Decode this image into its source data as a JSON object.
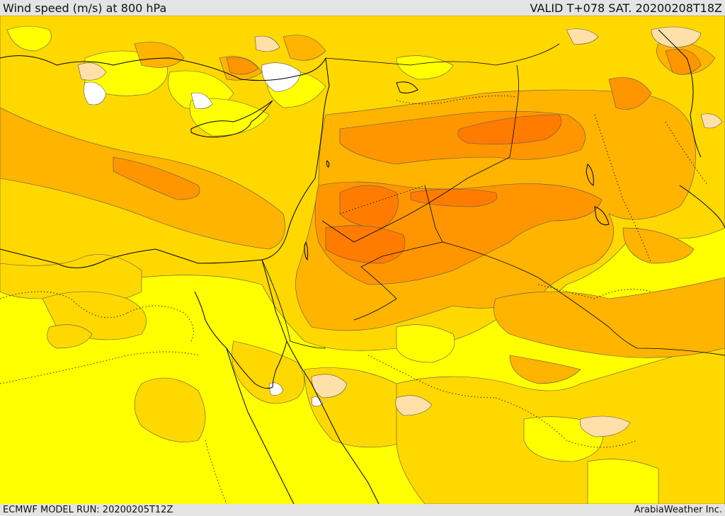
{
  "header": {
    "title": "Wind speed (m/s) at 800 hPa",
    "valid_time": "VALID T+078 SAT. 20200208T18Z"
  },
  "footer": {
    "model_run": "ECMWF MODEL RUN: 20200205T12Z",
    "credit": "ArabiaWeather Inc."
  },
  "map": {
    "variable": "wind speed",
    "level_hpa": 800,
    "units": "m/s",
    "colors": {
      "calm": "#ffffff",
      "lightest": "#ffe0a8",
      "light": "#ffff00",
      "moderate": "#ffd800",
      "fresh": "#ffb400",
      "strong": "#ff9600",
      "strongest": "#ff7c00",
      "coastline": "#000000"
    }
  }
}
